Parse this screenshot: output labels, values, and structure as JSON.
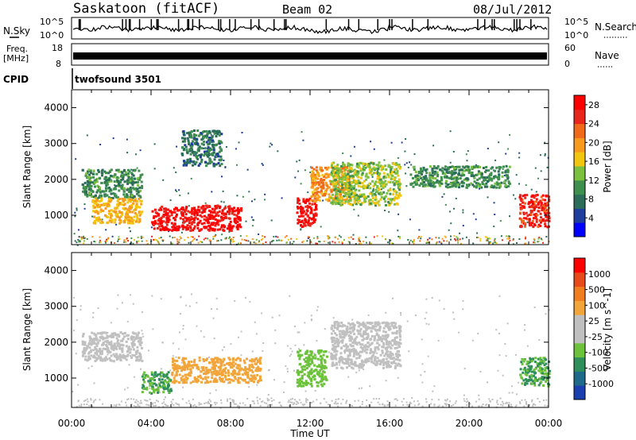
{
  "header": {
    "station": "Saskatoon (fitACF)",
    "beam": "Beam 02",
    "date": "08/Jul/2012"
  },
  "strip_panels": {
    "nsky": {
      "label": "N.Sky",
      "tick_top": "10^5",
      "tick_bottom": "10^0"
    },
    "nsearch": {
      "label": "N.Search",
      "tick_top": "10^5",
      "tick_bottom": "10^0"
    },
    "freq": {
      "label_line1": "Freq.",
      "label_line2": "[MHz]",
      "tick_top": "18",
      "tick_bottom": "8"
    },
    "nave": {
      "label": "Nave",
      "tick_top": "60",
      "tick_bottom": "0"
    },
    "cpid": {
      "label": "CPID",
      "value": "twofsound 3501"
    }
  },
  "axes": {
    "ylabel": "Slant Range [km]",
    "xlabel": "Time UT",
    "yticks": [
      "4000",
      "3000",
      "2000",
      "1000"
    ],
    "xticks": [
      "00:00",
      "04:00",
      "08:00",
      "12:00",
      "16:00",
      "20:00",
      "00:00"
    ]
  },
  "colors": {
    "power": [
      "#0000ff",
      "#1e3d9c",
      "#2c6d5a",
      "#3f8f4f",
      "#7cc040",
      "#f2c60e",
      "#f79a1d",
      "#f06a1a",
      "#e8261c",
      "#ff0000"
    ],
    "velocity": [
      "#1a3fb0",
      "#1e6a8a",
      "#2e8f5a",
      "#6dc23c",
      "#c0c0c0",
      "#c0c0c0",
      "#f2a53a",
      "#f07d1e",
      "#e84a1a",
      "#ff0000"
    ]
  },
  "chart_data": [
    {
      "type": "heatmap",
      "xlabel": "Time UT",
      "ylabel": "Slant Range [km]",
      "xlim": [
        "00:00",
        "24:00"
      ],
      "ylim": [
        180,
        4500
      ],
      "colorbar": {
        "label": "Power [dB]",
        "ticks": [
          "28",
          "24",
          "20",
          "16",
          "12",
          "8",
          "4"
        ],
        "range": [
          0,
          30
        ]
      },
      "regions": [
        {
          "t": [
            0.5,
            3.5
          ],
          "range": [
            1500,
            2300
          ],
          "value": 10
        },
        {
          "t": [
            1.0,
            3.5
          ],
          "range": [
            800,
            1500
          ],
          "value": 18
        },
        {
          "t": [
            4.0,
            8.5
          ],
          "range": [
            600,
            1300
          ],
          "value": 28
        },
        {
          "t": [
            5.5,
            7.5
          ],
          "range": [
            2400,
            3400
          ],
          "value": 8
        },
        {
          "t": [
            11.3,
            12.3
          ],
          "range": [
            700,
            1500
          ],
          "value": 28
        },
        {
          "t": [
            12.0,
            14.0
          ],
          "range": [
            1400,
            2400
          ],
          "value": 20
        },
        {
          "t": [
            13.0,
            16.5
          ],
          "range": [
            1300,
            2500
          ],
          "value": 14
        },
        {
          "t": [
            17.0,
            22.0
          ],
          "range": [
            1800,
            2400
          ],
          "value": 10
        },
        {
          "t": [
            22.5,
            24.0
          ],
          "range": [
            700,
            1600
          ],
          "value": 26
        }
      ]
    },
    {
      "type": "heatmap",
      "xlabel": "Time UT",
      "ylabel": "Slant Range [km]",
      "xlim": [
        "00:00",
        "24:00"
      ],
      "ylim": [
        180,
        4500
      ],
      "colorbar": {
        "label": "Velocity [m s^-1]",
        "ticks": [
          "1000",
          "500",
          "100",
          "25",
          "-25",
          "-100",
          "-500",
          "-1000"
        ],
        "range": [
          -1000,
          1000
        ]
      },
      "regions": [
        {
          "t": [
            0.5,
            3.5
          ],
          "range": [
            1500,
            2300
          ],
          "value": 0
        },
        {
          "t": [
            3.5,
            5.0
          ],
          "range": [
            600,
            1200
          ],
          "value": -400
        },
        {
          "t": [
            5.0,
            9.5
          ],
          "range": [
            900,
            1600
          ],
          "value": 300
        },
        {
          "t": [
            11.3,
            12.8
          ],
          "range": [
            800,
            1800
          ],
          "value": -300
        },
        {
          "t": [
            13.0,
            16.5
          ],
          "range": [
            1300,
            2600
          ],
          "value": 0
        },
        {
          "t": [
            22.5,
            24.0
          ],
          "range": [
            800,
            1600
          ],
          "value": -400
        }
      ]
    }
  ]
}
